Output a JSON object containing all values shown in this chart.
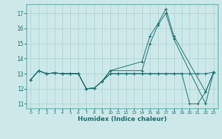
{
  "xlabel": "Humidex (Indice chaleur)",
  "xlim": [
    -0.5,
    23.5
  ],
  "ylim": [
    10.7,
    17.6
  ],
  "yticks": [
    11,
    12,
    13,
    14,
    15,
    16,
    17
  ],
  "xticks": [
    0,
    1,
    2,
    3,
    4,
    5,
    6,
    7,
    8,
    9,
    10,
    11,
    12,
    13,
    14,
    15,
    16,
    17,
    18,
    19,
    20,
    21,
    22,
    23
  ],
  "background_color": "#cce8e8",
  "grid_color": "#aacfcf",
  "line_color": "#1a6e6e",
  "curve1_x": [
    0,
    1,
    2,
    3,
    4,
    5,
    6,
    7,
    8,
    9,
    10,
    14,
    15,
    16,
    17,
    18,
    22,
    23
  ],
  "curve1_y": [
    12.6,
    13.2,
    13.0,
    13.05,
    13.0,
    13.0,
    13.0,
    12.0,
    12.05,
    12.5,
    13.2,
    13.8,
    15.5,
    16.3,
    17.3,
    15.5,
    11.8,
    13.1
  ],
  "curve2_x": [
    0,
    1,
    2,
    3,
    4,
    5,
    6,
    7,
    8,
    9,
    10,
    14,
    15,
    16,
    17,
    18,
    22,
    23
  ],
  "curve2_y": [
    12.6,
    13.2,
    13.0,
    13.05,
    13.0,
    13.0,
    13.0,
    12.0,
    12.05,
    12.5,
    13.2,
    13.2,
    15.0,
    16.2,
    17.0,
    15.3,
    11.0,
    13.1
  ],
  "curve3_x": [
    0,
    1,
    2,
    3,
    4,
    5,
    6,
    7,
    8,
    9,
    10,
    11,
    12,
    13,
    14,
    15,
    16,
    17,
    18,
    19,
    20,
    21,
    22,
    23
  ],
  "curve3_y": [
    12.6,
    13.2,
    13.0,
    13.05,
    13.0,
    13.0,
    13.0,
    12.0,
    12.05,
    12.5,
    13.0,
    13.0,
    13.0,
    13.0,
    13.0,
    13.0,
    13.0,
    13.0,
    13.0,
    13.0,
    13.0,
    13.0,
    13.0,
    13.1
  ],
  "curve4_x": [
    0,
    1,
    2,
    3,
    4,
    5,
    6,
    7,
    8,
    9,
    10,
    11,
    12,
    13,
    14,
    15,
    16,
    17,
    18,
    19,
    20,
    21,
    22,
    23
  ],
  "curve4_y": [
    12.6,
    13.2,
    13.0,
    13.05,
    13.0,
    13.0,
    13.0,
    12.0,
    12.05,
    12.5,
    13.0,
    13.0,
    13.0,
    13.0,
    13.0,
    13.0,
    13.0,
    13.0,
    13.0,
    13.0,
    11.0,
    11.0,
    11.8,
    13.1
  ]
}
